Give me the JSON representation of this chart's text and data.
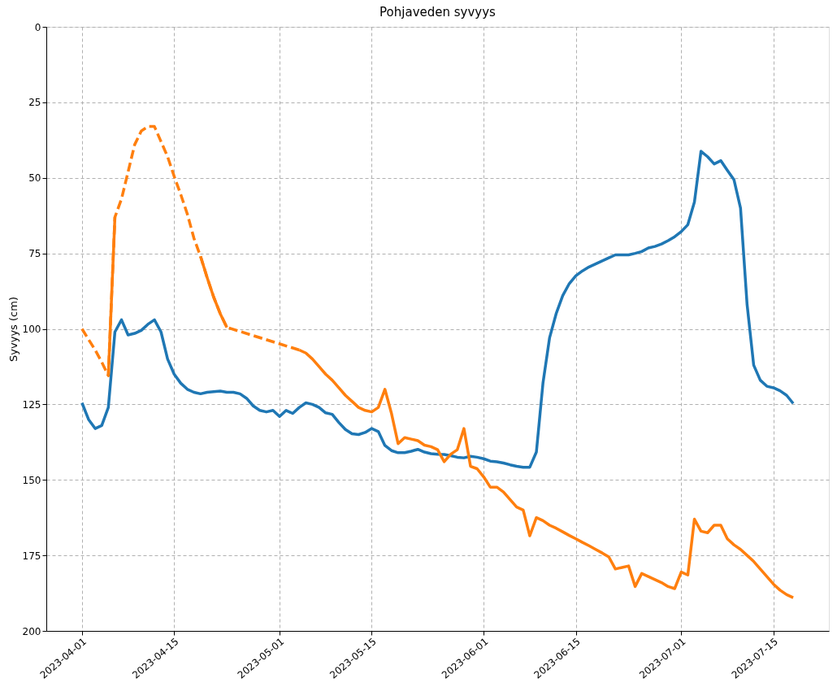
{
  "chart_data": {
    "type": "line",
    "title": "Pohjaveden syvyys",
    "ylabel": "Syvyys (cm)",
    "xlim": [
      "2023-03-26T14:00",
      "2023-07-23T10:00"
    ],
    "ylim": [
      200,
      0
    ],
    "xticks": [
      "2023-04-01",
      "2023-04-15",
      "2023-05-01",
      "2023-05-15",
      "2023-06-01",
      "2023-06-15",
      "2023-07-01",
      "2023-07-15"
    ],
    "yticks": [
      0,
      25,
      50,
      75,
      100,
      125,
      150,
      175,
      200
    ],
    "grid": true,
    "marker": "none",
    "series": [
      {
        "color": "#1f77b4",
        "line_style": "solid",
        "x": [
          "2023-04-01",
          "2023-04-02",
          "2023-04-03",
          "2023-04-04",
          "2023-04-05",
          "2023-04-06",
          "2023-04-07",
          "2023-04-08",
          "2023-04-09",
          "2023-04-10",
          "2023-04-11",
          "2023-04-12",
          "2023-04-13",
          "2023-04-14",
          "2023-04-15",
          "2023-04-16",
          "2023-04-17",
          "2023-04-18",
          "2023-04-19",
          "2023-04-20",
          "2023-04-21",
          "2023-04-22",
          "2023-04-23",
          "2023-04-24",
          "2023-04-25",
          "2023-04-26",
          "2023-04-27",
          "2023-04-28",
          "2023-04-29",
          "2023-04-30",
          "2023-05-01",
          "2023-05-02",
          "2023-05-03",
          "2023-05-04",
          "2023-05-05",
          "2023-05-06",
          "2023-05-07",
          "2023-05-08",
          "2023-05-09",
          "2023-05-10",
          "2023-05-11",
          "2023-05-12",
          "2023-05-13",
          "2023-05-14",
          "2023-05-15",
          "2023-05-16",
          "2023-05-17",
          "2023-05-18",
          "2023-05-19",
          "2023-05-20",
          "2023-05-21",
          "2023-05-22",
          "2023-05-23",
          "2023-05-24",
          "2023-05-25",
          "2023-05-26",
          "2023-05-27",
          "2023-05-28",
          "2023-05-29",
          "2023-05-30",
          "2023-05-31",
          "2023-06-01",
          "2023-06-02",
          "2023-06-03",
          "2023-06-04",
          "2023-06-05",
          "2023-06-06",
          "2023-06-07",
          "2023-06-08",
          "2023-06-09",
          "2023-06-10",
          "2023-06-11",
          "2023-06-12",
          "2023-06-13",
          "2023-06-14",
          "2023-06-15",
          "2023-06-16",
          "2023-06-17",
          "2023-06-18",
          "2023-06-19",
          "2023-06-20",
          "2023-06-21",
          "2023-06-22",
          "2023-06-23",
          "2023-06-24",
          "2023-06-25",
          "2023-06-26",
          "2023-06-27",
          "2023-06-28",
          "2023-06-29",
          "2023-06-30",
          "2023-07-01",
          "2023-07-02",
          "2023-07-03",
          "2023-07-04",
          "2023-07-05",
          "2023-07-06",
          "2023-07-07",
          "2023-07-08",
          "2023-07-09",
          "2023-07-10",
          "2023-07-11",
          "2023-07-12",
          "2023-07-13",
          "2023-07-14",
          "2023-07-15",
          "2023-07-16",
          "2023-07-17",
          "2023-07-18"
        ],
        "values": [
          124.5,
          130,
          133,
          132,
          126,
          101,
          97,
          102,
          101.5,
          100.5,
          98.5,
          97,
          101,
          110,
          115,
          118,
          120,
          121,
          121.5,
          121,
          120.8,
          120.6,
          121,
          121,
          121.5,
          123,
          125.5,
          127,
          127.5,
          127,
          129,
          127,
          128,
          126,
          124.5,
          125,
          126,
          127.8,
          128.3,
          131,
          133.3,
          134.7,
          135,
          134.3,
          133,
          134,
          138.6,
          140.3,
          141,
          141,
          140.5,
          139.9,
          140.8,
          141.3,
          141.5,
          141.6,
          142,
          142.5,
          142.7,
          142.2,
          142.5,
          143,
          143.8,
          144,
          144.4,
          145,
          145.5,
          145.8,
          145.8,
          140.8,
          118,
          103,
          95,
          89,
          85,
          82.4,
          80.8,
          79.5,
          78.5,
          77.5,
          76.5,
          75.5,
          75.5,
          75.5,
          75,
          74.4,
          73.2,
          72.7,
          71.9,
          70.8,
          69.5,
          67.8,
          65.5,
          58,
          41.2,
          43,
          45.4,
          44.3,
          47.5,
          50.6,
          60,
          92,
          112,
          117,
          119,
          119.5,
          120.5,
          122,
          124.7
        ]
      },
      {
        "color": "#ff7f0e",
        "line_style": "solid",
        "x": [
          "2023-04-05",
          "2023-04-06",
          "2023-04-07",
          "2023-04-19",
          "2023-04-20",
          "2023-04-21",
          "2023-04-22",
          "2023-04-23",
          "2023-04-28",
          "2023-05-04",
          "2023-05-05",
          "2023-05-06",
          "2023-05-07",
          "2023-05-08",
          "2023-05-09",
          "2023-05-10",
          "2023-05-11",
          "2023-05-12",
          "2023-05-13",
          "2023-05-14",
          "2023-05-15",
          "2023-05-16",
          "2023-05-17",
          "2023-05-18",
          "2023-05-19",
          "2023-05-20",
          "2023-05-21",
          "2023-05-22",
          "2023-05-23",
          "2023-05-24",
          "2023-05-25",
          "2023-05-26",
          "2023-05-27",
          "2023-05-28",
          "2023-05-29",
          "2023-05-30",
          "2023-05-31",
          "2023-06-01",
          "2023-06-02",
          "2023-06-03",
          "2023-06-04",
          "2023-06-05",
          "2023-06-06",
          "2023-06-07",
          "2023-06-08",
          "2023-06-09",
          "2023-06-10",
          "2023-06-11",
          "2023-06-12",
          "2023-06-13",
          "2023-06-14",
          "2023-06-15",
          "2023-06-16",
          "2023-06-17",
          "2023-06-18",
          "2023-06-19",
          "2023-06-20",
          "2023-06-21",
          "2023-06-22",
          "2023-06-23",
          "2023-06-24",
          "2023-06-25",
          "2023-06-26",
          "2023-06-27",
          "2023-06-28",
          "2023-06-29",
          "2023-06-30",
          "2023-07-01",
          "2023-07-02",
          "2023-07-03",
          "2023-07-04",
          "2023-07-05",
          "2023-07-06",
          "2023-07-07",
          "2023-07-08",
          "2023-07-09",
          "2023-07-10",
          "2023-07-11",
          "2023-07-12",
          "2023-07-13",
          "2023-07-14",
          "2023-07-15",
          "2023-07-16",
          "2023-07-17",
          "2023-07-18"
        ],
        "values": [
          115.5,
          63,
          null,
          76,
          83,
          89.5,
          95,
          99.5,
          null,
          107,
          108,
          110,
          112.5,
          115,
          117,
          119.5,
          122,
          124,
          126,
          127,
          127.5,
          126,
          120,
          128,
          138,
          136,
          136.5,
          137,
          138.5,
          139,
          140,
          144,
          141.5,
          140,
          133,
          145.5,
          146.3,
          149,
          152.4,
          152.4,
          154,
          156.5,
          159,
          160,
          168.5,
          162.5,
          163.5,
          165,
          166,
          167.2,
          168.4,
          169.5,
          170.7,
          171.8,
          173,
          174.2,
          175.5,
          179.5,
          179,
          178.5,
          185.3,
          181,
          182,
          183,
          184,
          185.3,
          186,
          180.5,
          181.5,
          163,
          167,
          167.5,
          165,
          165,
          169.5,
          171.5,
          173,
          175,
          177,
          179.5,
          182,
          184.5,
          186.5,
          188,
          189
        ]
      },
      {
        "color": "#ff7f0e",
        "line_style": "dashed",
        "x": [
          "2023-04-01",
          "2023-04-02",
          "2023-04-03",
          "2023-04-04",
          "2023-04-05",
          "2023-04-06",
          "2023-04-07",
          "2023-04-08",
          "2023-04-09",
          "2023-04-10",
          "2023-04-11",
          "2023-04-12",
          "2023-04-13",
          "2023-04-14",
          "2023-04-15",
          "2023-04-16",
          "2023-04-17",
          "2023-04-18",
          "2023-04-19",
          "2023-04-20",
          "2023-04-21",
          "2023-04-22",
          "2023-04-23",
          "2023-05-04"
        ],
        "values": [
          100,
          103.5,
          107,
          111,
          115.5,
          63,
          57,
          48,
          39,
          34.5,
          33,
          33,
          38,
          43,
          49.5,
          55.5,
          62,
          70,
          76,
          83,
          89.5,
          95,
          99.5,
          107
        ]
      }
    ]
  }
}
